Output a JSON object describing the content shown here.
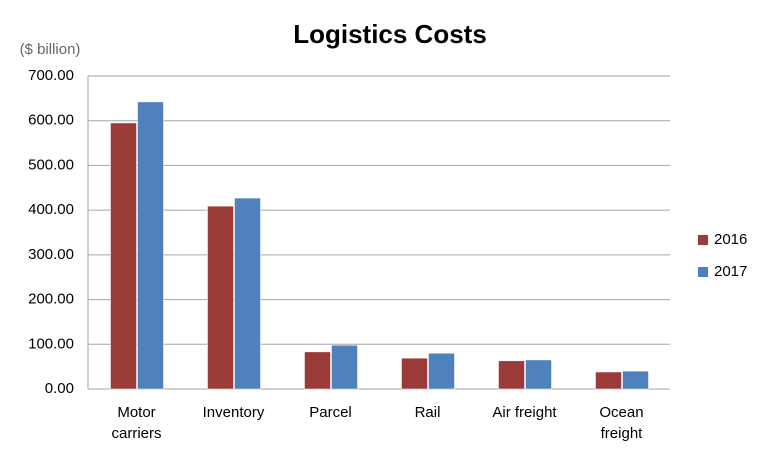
{
  "chart_data": {
    "type": "bar",
    "title": "Logistics Costs",
    "y_label": "($ billion)",
    "categories": [
      "Motor carriers",
      "Inventory",
      "Parcel",
      "Rail",
      "Air freight",
      "Ocean freight"
    ],
    "series": [
      {
        "name": "2016",
        "color": "#9b3b39",
        "values": [
          595,
          409,
          83,
          69,
          63,
          38
        ]
      },
      {
        "name": "2017",
        "color": "#4f81bd",
        "values": [
          642,
          427,
          98,
          80,
          65,
          40
        ]
      }
    ],
    "ylim": [
      0,
      700
    ],
    "yticks": [
      {
        "value": 0,
        "label": "0.00"
      },
      {
        "value": 100,
        "label": "100.00"
      },
      {
        "value": 200,
        "label": "200.00"
      },
      {
        "value": 300,
        "label": "300.00"
      },
      {
        "value": 400,
        "label": "400.00"
      },
      {
        "value": 500,
        "label": "500.00"
      },
      {
        "value": 600,
        "label": "600.00"
      },
      {
        "value": 700,
        "label": "700.00"
      }
    ],
    "grid": true,
    "legend": "right"
  }
}
